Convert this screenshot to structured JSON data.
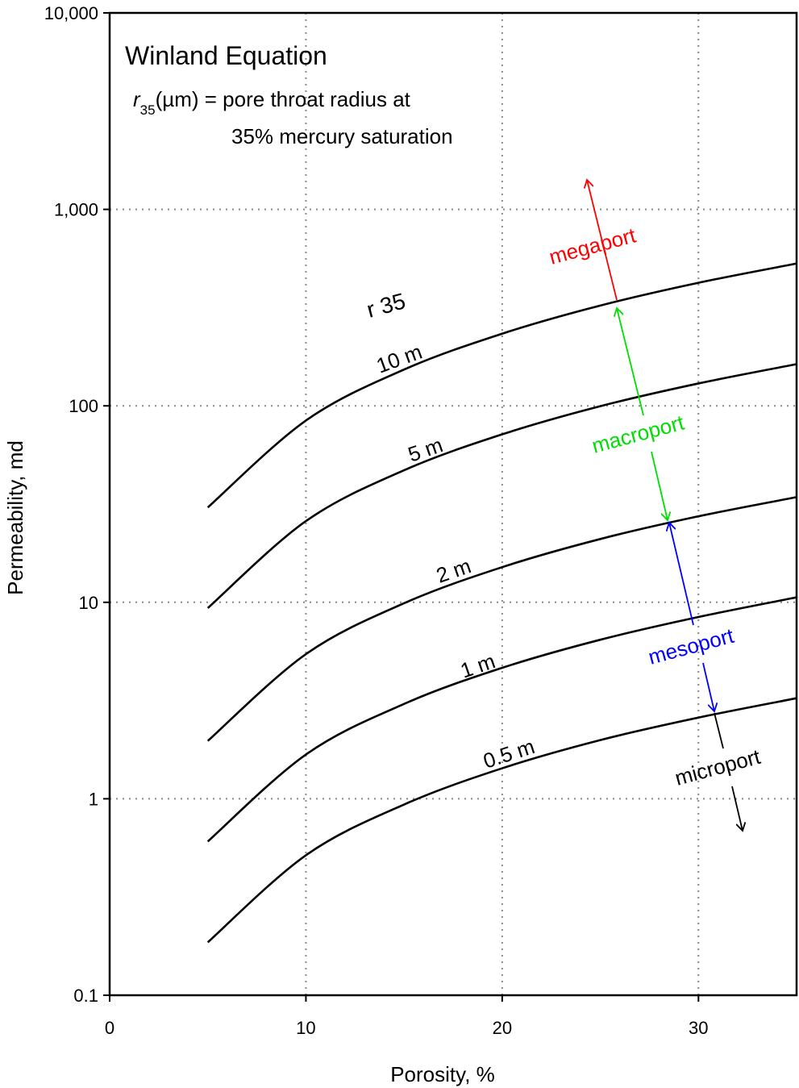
{
  "chart_data": {
    "type": "line",
    "title": "Winland Equation",
    "subtitle_line1_symbol": "r",
    "subtitle_line1_subscript": "35",
    "subtitle_line1_rest": "(µm) = pore throat radius at",
    "subtitle_line2": "35% mercury saturation",
    "xlabel": "Porosity, %",
    "ylabel": "Permeability, md",
    "xlim": [
      0,
      35
    ],
    "ylim": [
      0.1,
      10000
    ],
    "yscale": "log",
    "grid": true,
    "x_ticks": [
      "0",
      "10",
      "20",
      "30"
    ],
    "x_tick_values": [
      0,
      10,
      20,
      30
    ],
    "y_ticks": [
      "0.1",
      "1",
      "10",
      "100",
      "1,000",
      "10,000"
    ],
    "y_tick_values": [
      0.1,
      1,
      10,
      100,
      1000,
      10000
    ],
    "x": [
      5,
      10,
      15,
      20,
      25,
      30,
      35
    ],
    "series_label_header": "r 35",
    "series": [
      {
        "name": "10 m",
        "values": [
          30.4,
          84.2,
          153,
          233,
          324,
          423,
          530
        ]
      },
      {
        "name": "5 m",
        "values": [
          9.35,
          25.9,
          47.0,
          71.6,
          99.6,
          130,
          163
        ]
      },
      {
        "name": "2 m",
        "values": [
          1.97,
          5.45,
          9.89,
          15.1,
          21.0,
          27.4,
          34.3
        ]
      },
      {
        "name": "1 m",
        "values": [
          0.606,
          1.68,
          3.04,
          4.64,
          6.45,
          8.42,
          10.6
        ]
      },
      {
        "name": "0.5 m",
        "values": [
          0.186,
          0.516,
          0.935,
          1.43,
          1.99,
          2.59,
          3.25
        ]
      }
    ],
    "zones": [
      {
        "label": "megaport",
        "color": "#ff0000"
      },
      {
        "label": "macroport",
        "color": "#00dd00"
      },
      {
        "label": "mesoport",
        "color": "#0000ff"
      },
      {
        "label": "microport",
        "color": "#000000"
      }
    ]
  }
}
